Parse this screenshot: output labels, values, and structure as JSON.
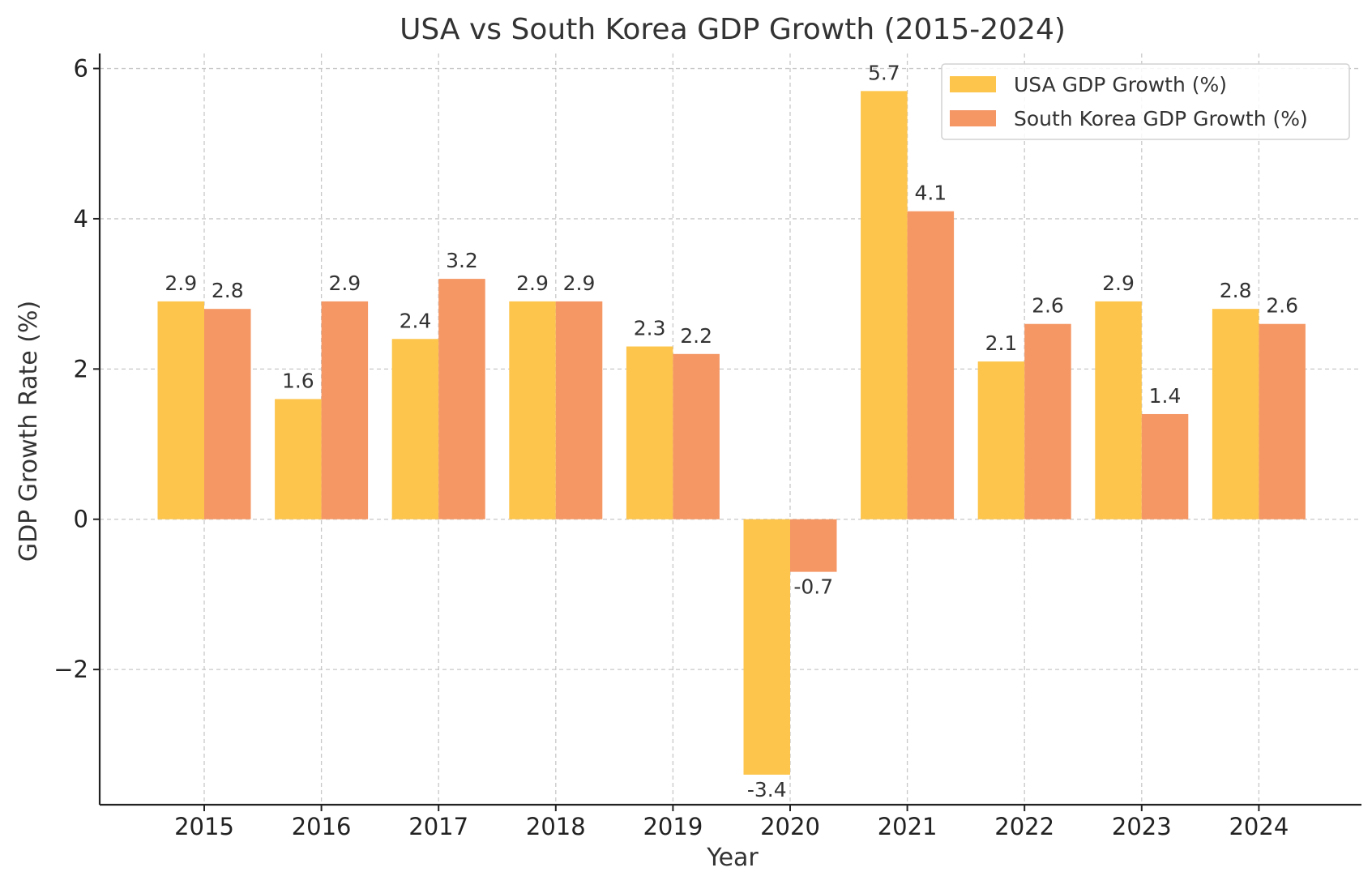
{
  "chart_data": {
    "type": "bar",
    "title": "USA vs South Korea GDP Growth (2015-2024)",
    "xlabel": "Year",
    "ylabel": "GDP Growth Rate (%)",
    "categories": [
      "2015",
      "2016",
      "2017",
      "2018",
      "2019",
      "2020",
      "2021",
      "2022",
      "2023",
      "2024"
    ],
    "series": [
      {
        "name": "USA GDP Growth (%)",
        "color": "#FDC54C",
        "values": [
          2.9,
          1.6,
          2.4,
          2.9,
          2.3,
          -3.4,
          5.7,
          2.1,
          2.9,
          2.8
        ],
        "labels": [
          "2.9",
          "1.6",
          "2.4",
          "2.9",
          "2.3",
          "-3.4",
          "5.7",
          "2.1",
          "2.9",
          "2.8"
        ]
      },
      {
        "name": "South Korea GDP Growth (%)",
        "color": "#F59765",
        "values": [
          2.8,
          2.9,
          3.2,
          2.9,
          2.2,
          -0.7,
          4.1,
          2.6,
          1.4,
          2.6
        ],
        "labels": [
          "2.8",
          "2.9",
          "3.2",
          "2.9",
          "2.2",
          "-0.7",
          "4.1",
          "2.6",
          "1.4",
          "2.6"
        ]
      }
    ],
    "yticks": [
      -2,
      0,
      2,
      4,
      6
    ],
    "ytick_labels": [
      "−2",
      "0",
      "2",
      "4",
      "6"
    ],
    "ylim": [
      -3.8,
      6.2
    ],
    "grid": true,
    "legend_position": "top-right"
  }
}
